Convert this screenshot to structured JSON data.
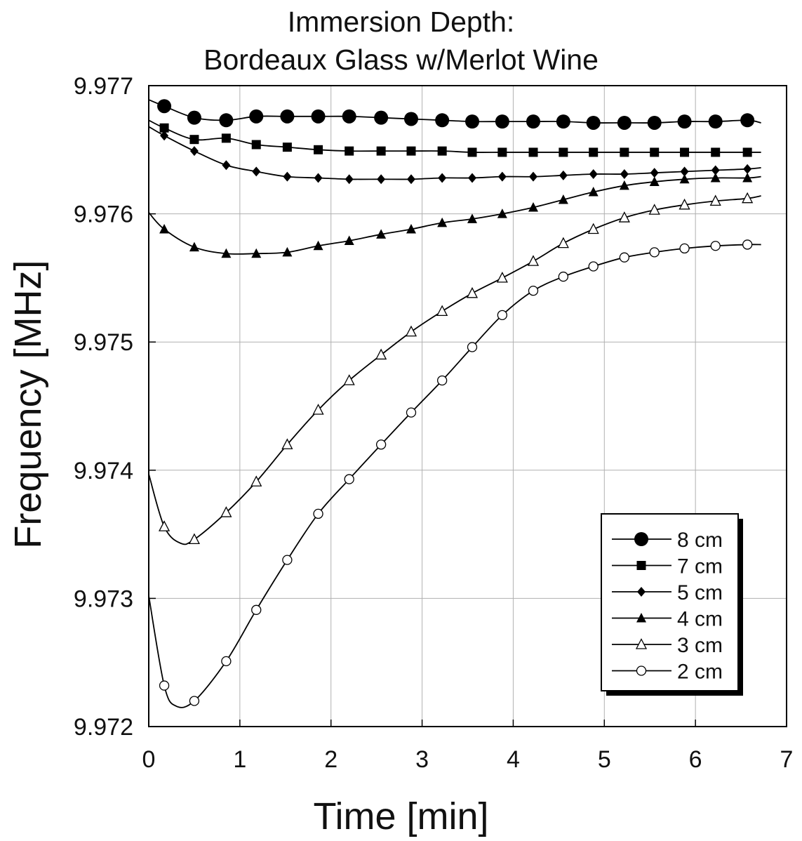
{
  "chart_data": {
    "type": "line",
    "title_lines": [
      "Immersion Depth:",
      "Bordeaux Glass w/Merlot Wine"
    ],
    "xlabel": "Time [min]",
    "ylabel": "Frequency [MHz]",
    "xlim": [
      0,
      7
    ],
    "ylim": [
      9.972,
      9.977
    ],
    "xticks": [
      "0",
      "1",
      "2",
      "3",
      "4",
      "5",
      "6",
      "7"
    ],
    "yticks": [
      "9.972",
      "9.973",
      "9.974",
      "9.975",
      "9.976",
      "9.977"
    ],
    "grid": true,
    "legend_position": "lower-right",
    "series": [
      {
        "name": "8 cm",
        "marker": "circle-filled-large",
        "x": [
          0,
          0.17,
          0.5,
          0.85,
          1.18,
          1.52,
          1.86,
          2.2,
          2.55,
          2.88,
          3.22,
          3.55,
          3.88,
          4.22,
          4.55,
          4.88,
          5.22,
          5.55,
          5.88,
          6.22,
          6.57,
          6.72
        ],
        "y": [
          9.97689,
          9.97684,
          9.97675,
          9.97673,
          9.97676,
          9.97676,
          9.97676,
          9.97676,
          9.97675,
          9.97674,
          9.97673,
          9.97672,
          9.97672,
          9.97672,
          9.97672,
          9.97671,
          9.97671,
          9.97671,
          9.97672,
          9.97672,
          9.97673,
          9.97671
        ]
      },
      {
        "name": "7 cm",
        "marker": "square-filled",
        "x": [
          0,
          0.17,
          0.5,
          0.85,
          1.18,
          1.52,
          1.86,
          2.2,
          2.55,
          2.88,
          3.22,
          3.55,
          3.88,
          4.22,
          4.55,
          4.88,
          5.22,
          5.55,
          5.88,
          6.22,
          6.57,
          6.72
        ],
        "y": [
          9.97673,
          9.97667,
          9.97658,
          9.97659,
          9.97654,
          9.97652,
          9.9765,
          9.97649,
          9.97649,
          9.97649,
          9.97649,
          9.97648,
          9.97648,
          9.97648,
          9.97648,
          9.97648,
          9.97648,
          9.97648,
          9.97648,
          9.97648,
          9.97648,
          9.97648
        ]
      },
      {
        "name": "5 cm",
        "marker": "diamond-filled",
        "x": [
          0,
          0.17,
          0.5,
          0.85,
          1.18,
          1.52,
          1.86,
          2.2,
          2.55,
          2.88,
          3.22,
          3.55,
          3.88,
          4.22,
          4.55,
          4.88,
          5.22,
          5.55,
          5.88,
          6.22,
          6.57,
          6.72
        ],
        "y": [
          9.97668,
          9.97661,
          9.97649,
          9.97638,
          9.97633,
          9.97629,
          9.97628,
          9.97627,
          9.97627,
          9.97627,
          9.97628,
          9.97628,
          9.97629,
          9.97629,
          9.9763,
          9.97631,
          9.97631,
          9.97632,
          9.97633,
          9.97634,
          9.97635,
          9.97636
        ]
      },
      {
        "name": "4 cm",
        "marker": "triangle-filled",
        "x": [
          0,
          0.17,
          0.5,
          0.85,
          1.18,
          1.52,
          1.86,
          2.2,
          2.55,
          2.88,
          3.22,
          3.55,
          3.88,
          4.22,
          4.55,
          4.88,
          5.22,
          5.55,
          5.88,
          6.22,
          6.57,
          6.72
        ],
        "y": [
          9.97601,
          9.97588,
          9.97574,
          9.97569,
          9.97569,
          9.9757,
          9.97575,
          9.97579,
          9.97584,
          9.97588,
          9.97593,
          9.97596,
          9.976,
          9.97605,
          9.97611,
          9.97617,
          9.97622,
          9.97625,
          9.97627,
          9.97628,
          9.97628,
          9.97629
        ]
      },
      {
        "name": "3 cm",
        "marker": "triangle-open",
        "x": [
          0,
          0.17,
          0.35,
          0.5,
          0.85,
          1.18,
          1.52,
          1.86,
          2.2,
          2.55,
          2.88,
          3.22,
          3.55,
          3.88,
          4.22,
          4.55,
          4.88,
          5.22,
          5.55,
          5.88,
          6.22,
          6.57,
          6.72
        ],
        "y": [
          9.97397,
          9.97356,
          9.97343,
          9.97346,
          9.97367,
          9.97391,
          9.9742,
          9.97447,
          9.9747,
          9.9749,
          9.97508,
          9.97524,
          9.97538,
          9.9755,
          9.97563,
          9.97577,
          9.97588,
          9.97597,
          9.97603,
          9.97607,
          9.9761,
          9.97612,
          9.97614
        ]
      },
      {
        "name": "2 cm",
        "marker": "circle-open",
        "x": [
          0,
          0.17,
          0.3,
          0.5,
          0.85,
          1.18,
          1.52,
          1.86,
          2.2,
          2.55,
          2.88,
          3.22,
          3.55,
          3.88,
          4.22,
          4.55,
          4.88,
          5.22,
          5.55,
          5.88,
          6.22,
          6.57,
          6.72
        ],
        "y": [
          9.97302,
          9.97232,
          9.97216,
          9.9722,
          9.97251,
          9.97291,
          9.9733,
          9.97366,
          9.97393,
          9.9742,
          9.97445,
          9.9747,
          9.97496,
          9.97521,
          9.9754,
          9.97551,
          9.97559,
          9.97566,
          9.9757,
          9.97573,
          9.97575,
          9.97576,
          9.97576
        ]
      }
    ]
  }
}
